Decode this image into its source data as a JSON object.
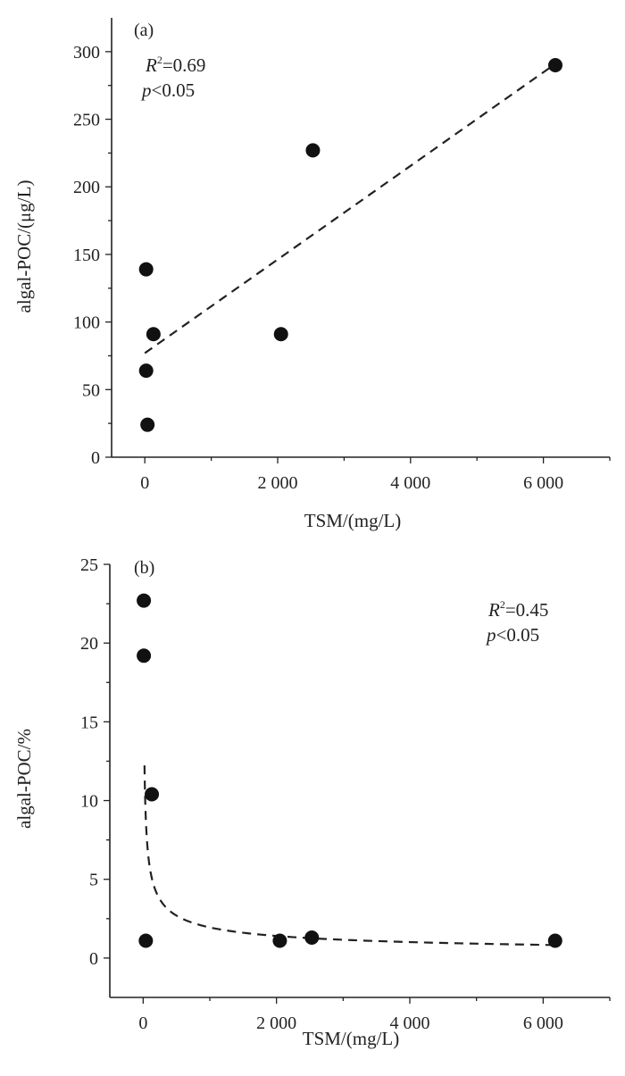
{
  "chart_data": [
    {
      "type": "scatter",
      "panel_label": "(a)",
      "xlabel": "TSM/(mg/L)",
      "ylabel": "algal-POC/(μg/L)",
      "xlim": [
        -500,
        7000
      ],
      "ylim": [
        0,
        325
      ],
      "xticks": [
        0,
        2000,
        4000,
        6000
      ],
      "xtick_labels": [
        "0",
        "2 000",
        "4 000",
        "6 000"
      ],
      "yticks": [
        0,
        50,
        100,
        150,
        200,
        250,
        300
      ],
      "ytick_labels": [
        "0",
        "50",
        "100",
        "150",
        "200",
        "250",
        "300"
      ],
      "points": [
        {
          "x": 40,
          "y": 24
        },
        {
          "x": 20,
          "y": 64
        },
        {
          "x": 130,
          "y": 91
        },
        {
          "x": 20,
          "y": 139
        },
        {
          "x": 2050,
          "y": 91
        },
        {
          "x": 2530,
          "y": 227
        },
        {
          "x": 6180,
          "y": 290
        }
      ],
      "fit": {
        "kind": "linear",
        "x0": 0,
        "y0": 77,
        "x1": 6180,
        "y1": 291
      },
      "r2_label": "R",
      "r2_sup": "2",
      "r2_value": "=0.69",
      "p_label": "p",
      "p_value": "<0.05",
      "legend_position": "top-left"
    },
    {
      "type": "scatter",
      "panel_label": "(b)",
      "xlabel": "TSM/(mg/L)",
      "ylabel": "algal-POC/%",
      "xlim": [
        -500,
        7000
      ],
      "ylim": [
        -2.5,
        25
      ],
      "xticks": [
        0,
        2000,
        4000,
        6000
      ],
      "xtick_labels": [
        "0",
        "2 000",
        "4 000",
        "6 000"
      ],
      "yticks": [
        0,
        5,
        10,
        15,
        20,
        25
      ],
      "ytick_labels": [
        "0",
        "5",
        "10",
        "15",
        "20",
        "25"
      ],
      "points": [
        {
          "x": 10,
          "y": 22.7
        },
        {
          "x": 10,
          "y": 19.2
        },
        {
          "x": 130,
          "y": 10.4
        },
        {
          "x": 40,
          "y": 1.1
        },
        {
          "x": 2050,
          "y": 1.1
        },
        {
          "x": 2530,
          "y": 1.3
        },
        {
          "x": 6180,
          "y": 1.1
        }
      ],
      "fit": {
        "kind": "power",
        "a": 50,
        "b": -0.47,
        "x_start": 20,
        "x_end": 6180
      },
      "r2_label": "R",
      "r2_sup": "2",
      "r2_value": "=0.45",
      "p_label": "p",
      "p_value": "<0.05",
      "legend_position": "top-right"
    }
  ]
}
